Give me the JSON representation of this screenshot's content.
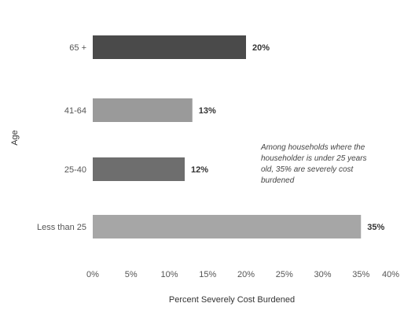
{
  "chart_data": {
    "type": "bar",
    "orientation": "horizontal",
    "categories": [
      "65 +",
      "41-64",
      "25-40",
      "Less than 25"
    ],
    "values": [
      20,
      13,
      12,
      35
    ],
    "data_labels": [
      "20%",
      "13%",
      "12%",
      "35%"
    ],
    "bar_colors": [
      "#4a4a4a",
      "#9a9a9a",
      "#6e6e6e",
      "#a6a6a6"
    ],
    "title": "",
    "xlabel": "Percent Severely Cost Burdened",
    "ylabel": "Age",
    "xlim": [
      0,
      40
    ],
    "x_ticks": [
      "0%",
      "5%",
      "10%",
      "15%",
      "20%",
      "25%",
      "30%",
      "35%",
      "40%"
    ],
    "grid": false,
    "legend": "none",
    "annotation": {
      "lines": [
        "Among households where the",
        "householder is under 25 years",
        "old, 35% are severely cost",
        "burdened"
      ]
    }
  }
}
